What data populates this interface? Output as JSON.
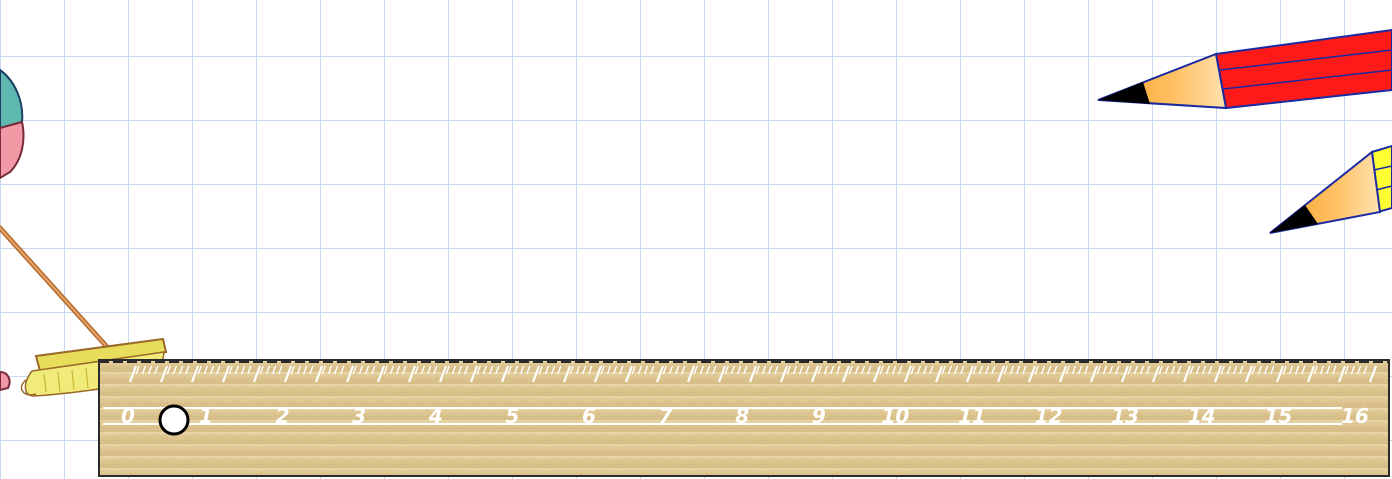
{
  "scene": {
    "background": "grid-paper",
    "grid_color": "#c9d8ee",
    "ruler": {
      "labels": [
        "0",
        "1",
        "2",
        "3",
        "4",
        "5",
        "6",
        "7",
        "8",
        "9",
        "10",
        "11",
        "12",
        "13",
        "14",
        "15",
        "16"
      ],
      "color": "#e2cb98",
      "marker_icon": "circle-marker-icon"
    },
    "pencils": [
      {
        "name": "red-pencil-icon",
        "color": "#ff1a1a"
      },
      {
        "name": "yellow-pencil-icon",
        "color": "#ffff33"
      }
    ],
    "broom": {
      "name": "broom-icon",
      "bristle_color": "#f2e66a"
    }
  }
}
